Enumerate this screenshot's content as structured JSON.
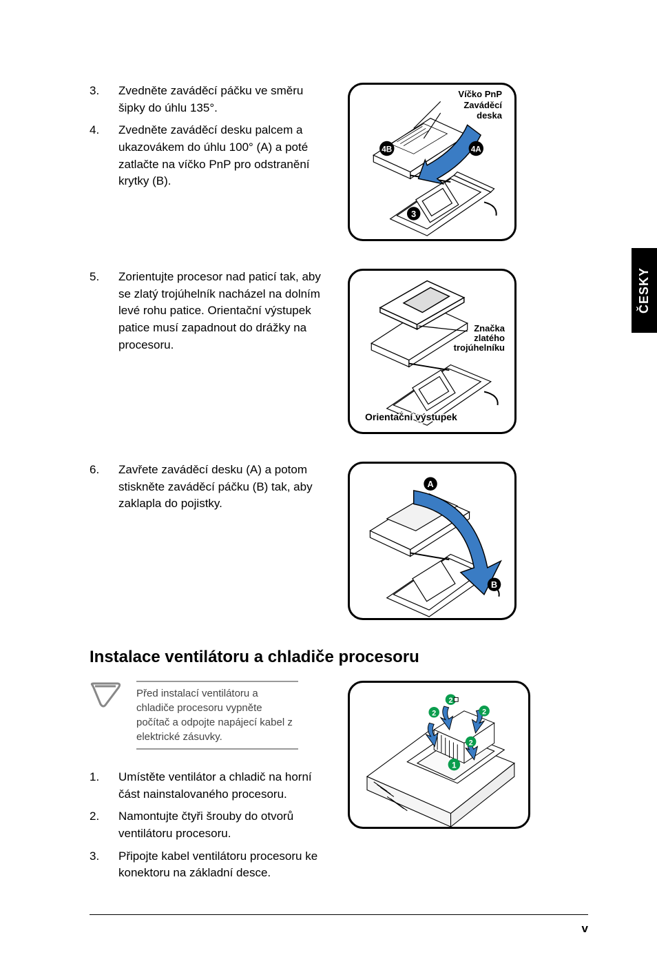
{
  "side_tab": "ČESKY",
  "steps_a": [
    {
      "num": "3.",
      "txt": "Zvedněte zaváděcí páčku ve směru šipky do úhlu 135°."
    },
    {
      "num": "4.",
      "txt": "Zvedněte zaváděcí desku palcem a ukazovákem do úhlu 100° (A) a poté zatlačte na víčko PnP pro odstranění krytky (B)."
    }
  ],
  "steps_b": [
    {
      "num": "5.",
      "txt": "Zorientujte procesor nad paticí tak, aby se zlatý trojúhelník nacházel na dolním levé rohu patice. Orientační výstupek patice musí zapadnout do drážky na procesoru."
    }
  ],
  "steps_c": [
    {
      "num": "6.",
      "txt": "Zavřete zaváděcí desku (A) a potom stiskněte zaváděcí páčku (B) tak, aby zaklapla do pojistky."
    }
  ],
  "heading": "Instalace ventilátoru a chladiče procesoru",
  "note_text": "Před instalací ventilátoru a chladiče procesoru vypněte počítač a odpojte napájecí kabel z elektrické zásuvky.",
  "steps_d": [
    {
      "num": "1.",
      "txt": "Umístěte ventilátor a chladič na horní část nainstalovaného procesoru."
    },
    {
      "num": "2.",
      "txt": "Namontujte čtyři šrouby do otvorů ventilátoru procesoru."
    },
    {
      "num": "3.",
      "txt": "Připojte kabel ventilátoru procesoru ke konektoru na základní desce."
    }
  ],
  "fig1": {
    "l1": "Víčko PnP",
    "l2": "Zaváděcí",
    "l3": "deska",
    "m1": "4B",
    "m2": "4A",
    "m3": "3"
  },
  "fig2": {
    "l1": "Značka",
    "l2": "zlatého",
    "l3": "trojúhelníku",
    "bottom": "Orientační výstupek"
  },
  "fig3": {
    "mA": "A",
    "mB": "B"
  },
  "fig4": {
    "m1": "1",
    "m2": "2"
  },
  "footer": "v",
  "colors": {
    "arrow": "#3a7cc4",
    "marker": "#000",
    "marker_txt": "#fff",
    "green_marker": "#0a9d4d"
  }
}
